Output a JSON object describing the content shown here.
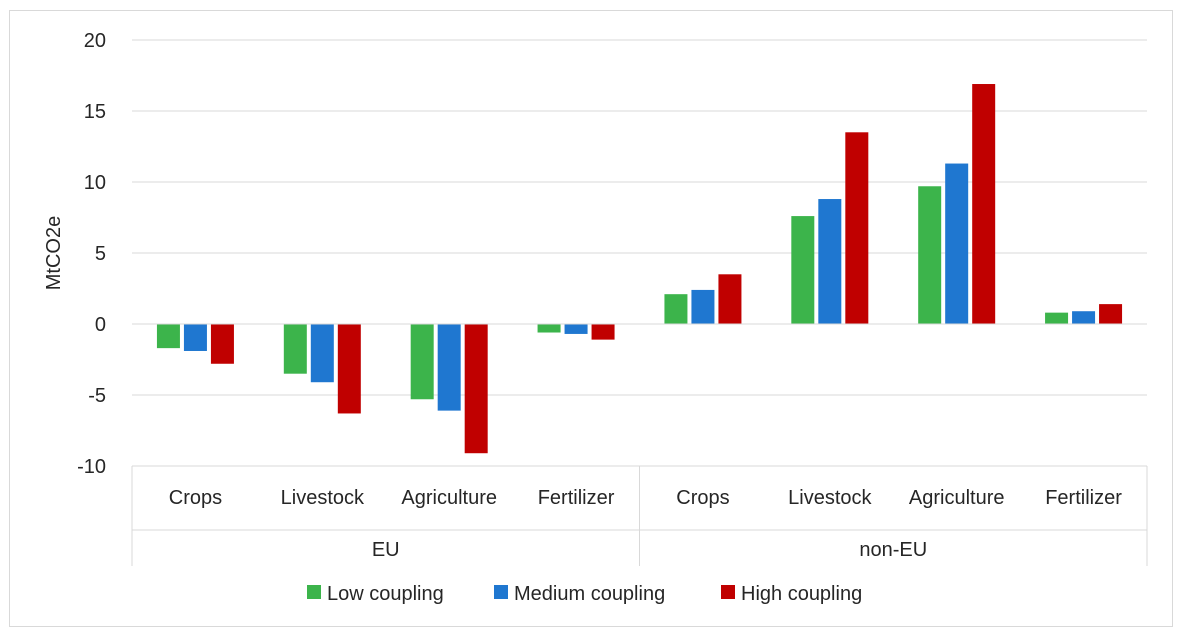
{
  "chart_data": {
    "type": "bar",
    "title": "",
    "ylabel": "MtCO2e",
    "xlabel": "",
    "ylim": [
      -10,
      20
    ],
    "yticks": [
      -10,
      -5,
      0,
      5,
      10,
      15,
      20
    ],
    "grid": true,
    "legend_position": "bottom",
    "groups": [
      {
        "name": "EU",
        "categories": [
          "Crops",
          "Livestock",
          "Agriculture",
          "Fertilizer"
        ]
      },
      {
        "name": "non-EU",
        "categories": [
          "Crops",
          "Livestock",
          "Agriculture",
          "Fertilizer"
        ]
      }
    ],
    "series": [
      {
        "name": "Low coupling",
        "color": "#3cb44b",
        "values": [
          -1.7,
          -3.5,
          -5.3,
          -0.6,
          2.1,
          7.6,
          9.7,
          0.8
        ]
      },
      {
        "name": "Medium coupling",
        "color": "#1f77d0",
        "values": [
          -1.9,
          -4.1,
          -6.1,
          -0.7,
          2.4,
          8.8,
          11.3,
          0.9
        ]
      },
      {
        "name": "High coupling",
        "color": "#c00000",
        "values": [
          -2.8,
          -6.3,
          -9.1,
          -1.1,
          3.5,
          13.5,
          16.9,
          1.4
        ]
      }
    ]
  }
}
